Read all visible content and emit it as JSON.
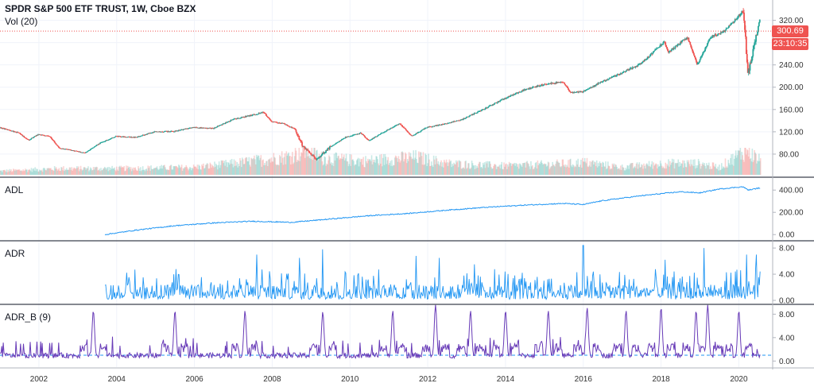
{
  "legend": {
    "title": "SPDR S&P 500 ETF TRUST, 1W, Cboe BZX",
    "volume_label": "Vol (20)"
  },
  "price_tags": {
    "last_price": "300.69",
    "countdown": "23:10:35",
    "color": "#ef5350"
  },
  "colors": {
    "up": "#26a69a",
    "down": "#ef5350",
    "adl_line": "#2196f3",
    "adr_line": "#2196f3",
    "adrb_line": "#673ab7",
    "adrb_baseline": "#2196f3"
  },
  "chart_data": [
    {
      "type": "candlestick",
      "pane": "main",
      "title": "SPDR S&P 500 ETF TRUST, 1W, Cboe BZX",
      "x_range": [
        2001.0,
        2020.6
      ],
      "ylim": [
        40,
        345
      ],
      "y_ticks": [
        "320.00",
        "280.00",
        "240.00",
        "200.00",
        "160.00",
        "120.00",
        "80.00"
      ],
      "y_tick_values": [
        320,
        280,
        240,
        200,
        160,
        120,
        80
      ],
      "price_path": [
        [
          2001.0,
          128
        ],
        [
          2001.5,
          118
        ],
        [
          2001.75,
          105
        ],
        [
          2002.0,
          115
        ],
        [
          2002.3,
          112
        ],
        [
          2002.55,
          90
        ],
        [
          2002.8,
          88
        ],
        [
          2003.2,
          82
        ],
        [
          2003.6,
          100
        ],
        [
          2004.0,
          112
        ],
        [
          2004.5,
          110
        ],
        [
          2005.0,
          120
        ],
        [
          2005.5,
          121
        ],
        [
          2006.0,
          128
        ],
        [
          2006.5,
          126
        ],
        [
          2007.0,
          142
        ],
        [
          2007.5,
          150
        ],
        [
          2007.8,
          155
        ],
        [
          2008.0,
          138
        ],
        [
          2008.3,
          135
        ],
        [
          2008.6,
          125
        ],
        [
          2008.8,
          95
        ],
        [
          2009.15,
          70
        ],
        [
          2009.5,
          92
        ],
        [
          2009.9,
          110
        ],
        [
          2010.3,
          118
        ],
        [
          2010.5,
          104
        ],
        [
          2010.9,
          120
        ],
        [
          2011.3,
          135
        ],
        [
          2011.6,
          112
        ],
        [
          2012.0,
          128
        ],
        [
          2012.5,
          135
        ],
        [
          2012.9,
          142
        ],
        [
          2013.5,
          162
        ],
        [
          2014.0,
          180
        ],
        [
          2014.5,
          195
        ],
        [
          2015.0,
          205
        ],
        [
          2015.5,
          210
        ],
        [
          2015.7,
          190
        ],
        [
          2016.0,
          192
        ],
        [
          2016.5,
          210
        ],
        [
          2017.0,
          225
        ],
        [
          2017.5,
          242
        ],
        [
          2017.9,
          268
        ],
        [
          2018.1,
          282
        ],
        [
          2018.2,
          262
        ],
        [
          2018.7,
          290
        ],
        [
          2018.95,
          240
        ],
        [
          2019.3,
          290
        ],
        [
          2019.6,
          298
        ],
        [
          2019.9,
          318
        ],
        [
          2020.1,
          335
        ],
        [
          2020.15,
          330
        ],
        [
          2020.25,
          222
        ],
        [
          2020.35,
          255
        ],
        [
          2020.5,
          300
        ],
        [
          2020.55,
          320
        ]
      ],
      "last_price": 300.69
    },
    {
      "type": "bar",
      "pane": "main",
      "series_name": "Vol (20)",
      "volume_path": [
        [
          2001.0,
          15
        ],
        [
          2002.5,
          25
        ],
        [
          2004.0,
          25
        ],
        [
          2006.0,
          30
        ],
        [
          2007.0,
          45
        ],
        [
          2007.8,
          60
        ],
        [
          2008.5,
          75
        ],
        [
          2008.85,
          100
        ],
        [
          2009.3,
          65
        ],
        [
          2010.4,
          55
        ],
        [
          2011.7,
          70
        ],
        [
          2012.5,
          45
        ],
        [
          2014.0,
          35
        ],
        [
          2015.7,
          45
        ],
        [
          2016.0,
          50
        ],
        [
          2017.0,
          30
        ],
        [
          2018.1,
          45
        ],
        [
          2018.95,
          45
        ],
        [
          2019.5,
          30
        ],
        [
          2020.2,
          100
        ],
        [
          2020.55,
          55
        ]
      ]
    },
    {
      "type": "line",
      "pane": "ADL",
      "series_name": "ADL",
      "ylim": [
        -20,
        480
      ],
      "y_ticks": [
        "400.00",
        "200.00",
        "0.00"
      ],
      "y_tick_values": [
        400,
        200,
        0
      ],
      "x": [
        2003.7,
        2004.5,
        2005.5,
        2006.5,
        2007.5,
        2008.5,
        2009.5,
        2010.5,
        2011.5,
        2012.5,
        2013.5,
        2014.5,
        2015.5,
        2016.0,
        2016.5,
        2017.5,
        2018.5,
        2019.0,
        2019.5,
        2020.1,
        2020.25,
        2020.55
      ],
      "values": [
        0,
        40,
        80,
        105,
        120,
        110,
        140,
        170,
        190,
        220,
        245,
        265,
        280,
        270,
        305,
        350,
        385,
        375,
        410,
        430,
        400,
        420
      ]
    },
    {
      "type": "line",
      "pane": "ADR",
      "series_name": "ADR",
      "ylim": [
        0,
        8.5
      ],
      "y_ticks": [
        "8.00",
        "4.00",
        "0.00"
      ],
      "y_tick_values": [
        8,
        4,
        0
      ],
      "x_range": [
        2003.7,
        2020.55
      ],
      "baseline": 1.5,
      "spikes": [
        [
          2007.6,
          7.0
        ],
        [
          2008.7,
          6.5
        ],
        [
          2009.3,
          7.8
        ],
        [
          2011.7,
          6.8
        ],
        [
          2012.3,
          6.5
        ],
        [
          2013.2,
          5.5
        ],
        [
          2016.0,
          8.4
        ],
        [
          2018.1,
          6.2
        ],
        [
          2019.1,
          8.0
        ],
        [
          2020.2,
          7.0
        ],
        [
          2020.45,
          7.0
        ]
      ]
    },
    {
      "type": "line",
      "pane": "ADR_B",
      "series_name": "ADR_B (9)",
      "ylim": [
        -0.5,
        9.0
      ],
      "y_ticks": [
        "8.00",
        "4.00",
        "0.00"
      ],
      "y_tick_values": [
        8,
        4,
        0
      ],
      "x_range": [
        2000.95,
        2020.55
      ],
      "reference_level": 1.0,
      "peaks": [
        2003.4,
        2005.5,
        2007.3,
        2009.3,
        2011.1,
        2012.2,
        2013.1,
        2014.0,
        2015.1,
        2016.1,
        2017.1,
        2018.0,
        2018.9,
        2019.2,
        2020.0
      ],
      "peak_values": [
        8.0,
        8.0,
        8.0,
        7.8,
        8.0,
        9.0,
        8.0,
        8.0,
        8.0,
        8.5,
        8.0,
        8.5,
        8.0,
        9.0,
        8.0
      ],
      "x_ticks": [
        "2002",
        "2004",
        "2006",
        "2008",
        "2010",
        "2012",
        "2014",
        "2016",
        "2018",
        "2020"
      ],
      "x_tick_values": [
        2002,
        2004,
        2006,
        2008,
        2010,
        2012,
        2014,
        2016,
        2018,
        2020
      ]
    }
  ],
  "panes": {
    "adl_label": "ADL",
    "adr_label": "ADR",
    "adrb_label": "ADR_B (9)"
  }
}
